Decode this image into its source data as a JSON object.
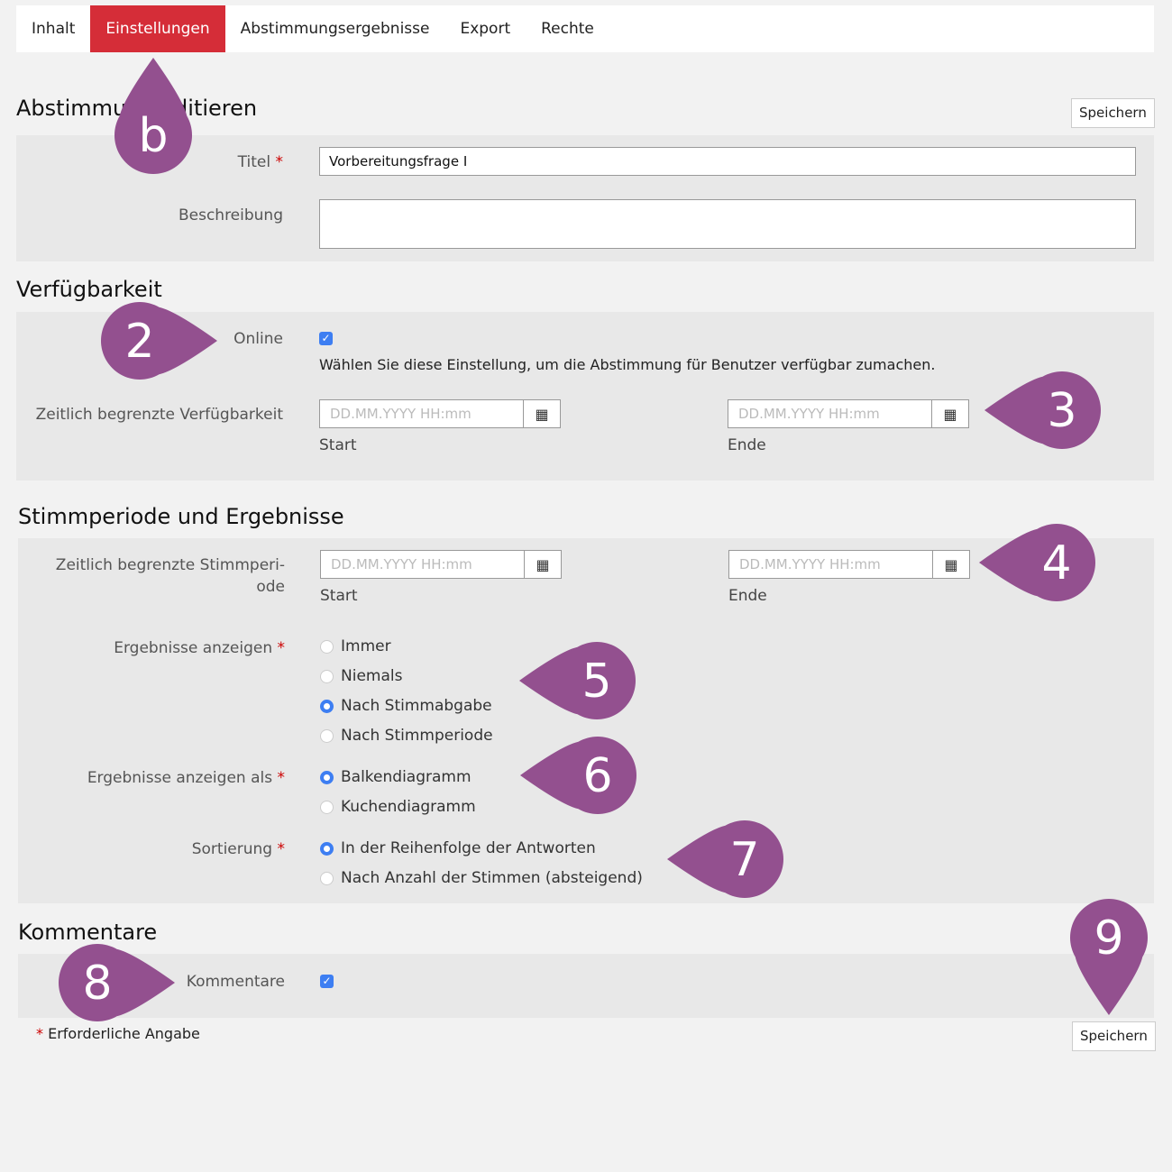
{
  "tabs": [
    {
      "label": "Inhalt"
    },
    {
      "label": "Einstellungen",
      "active": true
    },
    {
      "label": "Abstimmungsergebnisse"
    },
    {
      "label": "Export"
    },
    {
      "label": "Rechte"
    }
  ],
  "save_label": "Speichern",
  "edit": {
    "heading": "Abstimmung editieren",
    "title_label": "Titel",
    "title_value": "Vorbereitungsfrage I",
    "description_label": "Beschreibung",
    "description_value": ""
  },
  "availability": {
    "heading": "Verfügbarkeit",
    "online_label": "Online",
    "online_checked": true,
    "online_help": "Wählen Sie diese Einstellung, um die Abstimmung für Benutzer verfügbar zumachen.",
    "limited_label": "Zeitlich begrenzte Verfügbarkeit",
    "date_placeholder": "DD.MM.YYYY HH:mm",
    "start": "Start",
    "end": "Ende"
  },
  "voting": {
    "heading": "Stimmperiode und Ergebnisse",
    "period_label_1": "Zeitlich begrenzte Stimmperi-",
    "period_label_2": "ode",
    "date_placeholder": "DD.MM.YYYY HH:mm",
    "start": "Start",
    "end": "Ende",
    "show_label": "Ergebnisse anzeigen",
    "show_options": [
      {
        "label": "Immer",
        "checked": false
      },
      {
        "label": "Niemals",
        "checked": false
      },
      {
        "label": "Nach Stimmabgabe",
        "checked": true
      },
      {
        "label": "Nach Stimmperiode",
        "checked": false
      }
    ],
    "as_label": "Ergebnisse anzeigen als",
    "as_options": [
      {
        "label": "Balkendiagramm",
        "checked": true
      },
      {
        "label": "Kuchendiagramm",
        "checked": false
      }
    ],
    "sort_label": "Sortierung",
    "sort_options": [
      {
        "label": "In der Reihenfolge der Antworten",
        "checked": true
      },
      {
        "label": "Nach Anzahl der Stimmen (absteigend)",
        "checked": false
      }
    ]
  },
  "comments": {
    "heading": "Kommentare",
    "label": "Kommentare",
    "checked": true
  },
  "required_star": "*",
  "required_note": "Erforderliche Angabe",
  "marker_color": "#93508f",
  "markers": [
    "b",
    "2",
    "3",
    "4",
    "5",
    "6",
    "7",
    "8",
    "9"
  ]
}
